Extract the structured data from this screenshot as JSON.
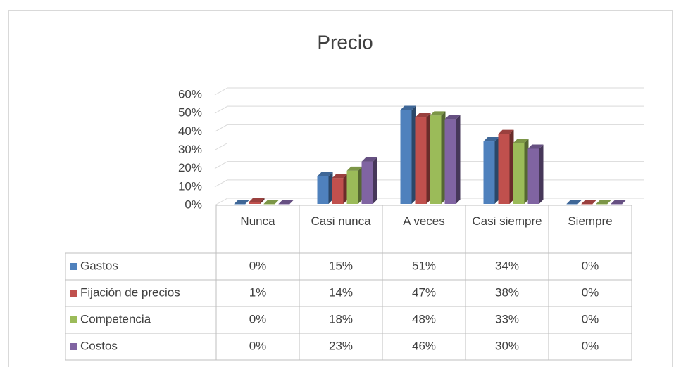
{
  "chart_data": {
    "type": "bar3d",
    "title": "Precio",
    "categories": [
      "Nunca",
      "Casi nunca",
      "A veces",
      "Casi siempre",
      "Siempre"
    ],
    "series": [
      {
        "name": "Gastos",
        "color": "#4f81bd",
        "values": [
          0,
          15,
          51,
          34,
          0
        ],
        "value_labels": [
          "0%",
          "15%",
          "51%",
          "34%",
          "0%"
        ]
      },
      {
        "name": "Fijación de precios",
        "color": "#c0504d",
        "values": [
          1,
          14,
          47,
          38,
          0
        ],
        "value_labels": [
          "1%",
          "14%",
          "47%",
          "38%",
          "0%"
        ]
      },
      {
        "name": "Competencia",
        "color": "#9bbb59",
        "values": [
          0,
          18,
          48,
          33,
          0
        ],
        "value_labels": [
          "0%",
          "18%",
          "48%",
          "33%",
          "0%"
        ]
      },
      {
        "name": "Costos",
        "color": "#8064a2",
        "values": [
          0,
          23,
          46,
          30,
          0
        ],
        "value_labels": [
          "0%",
          "23%",
          "46%",
          "30%",
          "0%"
        ]
      }
    ],
    "ylim": [
      0,
      60
    ],
    "yticks": [
      {
        "value": 0,
        "label": "0%"
      },
      {
        "value": 10,
        "label": "10%"
      },
      {
        "value": 20,
        "label": "20%"
      },
      {
        "value": 30,
        "label": "30%"
      },
      {
        "value": 40,
        "label": "40%"
      },
      {
        "value": 50,
        "label": "50%"
      },
      {
        "value": 60,
        "label": "60%"
      }
    ],
    "grid": true,
    "data_table": true
  }
}
